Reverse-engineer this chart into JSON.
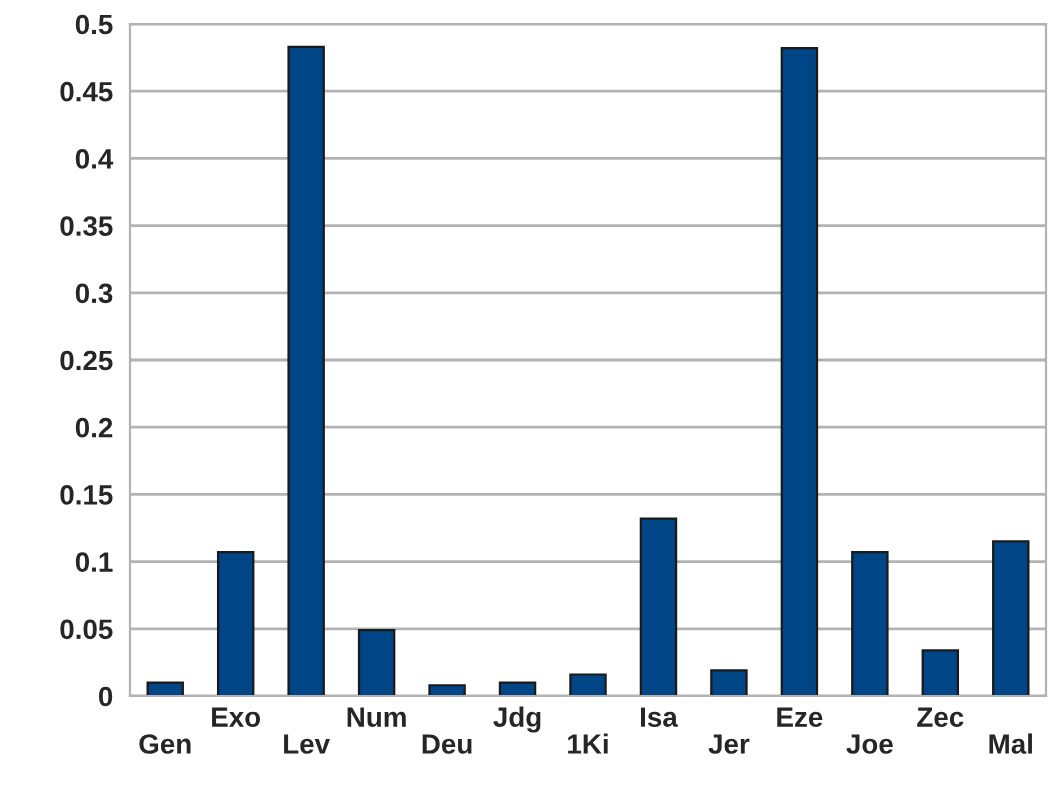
{
  "chart_data": {
    "type": "bar",
    "categories": [
      "Gen",
      "Exo",
      "Lev",
      "Num",
      "Deu",
      "Jdg",
      "1Ki",
      "Isa",
      "Jer",
      "Eze",
      "Joe",
      "Zec",
      "Mal"
    ],
    "values": [
      0.01,
      0.107,
      0.483,
      0.049,
      0.008,
      0.01,
      0.016,
      0.132,
      0.019,
      0.482,
      0.107,
      0.034,
      0.115
    ],
    "color": "#004586",
    "ylim": [
      0,
      0.5
    ],
    "yticks": [
      0,
      0.05,
      0.1,
      0.15,
      0.2,
      0.25,
      0.3,
      0.35,
      0.4,
      0.45,
      0.5
    ],
    "grid": "y",
    "legend": false
  }
}
